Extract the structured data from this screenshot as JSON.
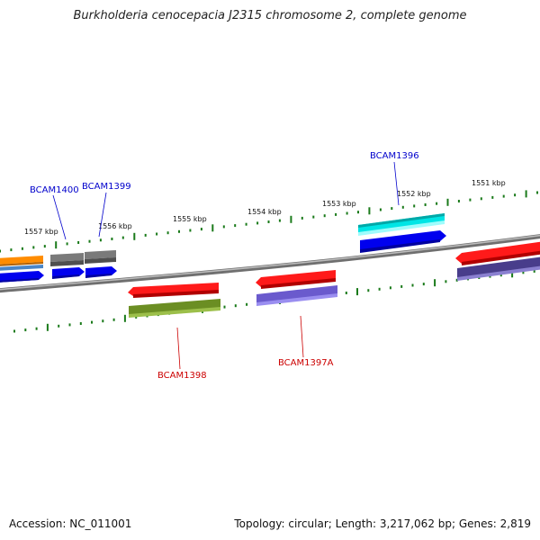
{
  "title": "Burkholderia cenocepacia J2315 chromosome 2, complete genome",
  "footer": {
    "accession": "Accession: NC_011001",
    "topology": "Topology: circular; Length: 3,217,062 bp; Genes: 2,819"
  },
  "kbp_ticks": [
    "1557 kbp",
    "1556 kbp",
    "1555 kbp",
    "1554 kbp",
    "1553 kbp",
    "1552 kbp",
    "1551 kbp"
  ],
  "gene_labels": [
    {
      "id": "BCAM1400",
      "color": "#0000cc",
      "strand": "forward"
    },
    {
      "id": "BCAM1399",
      "color": "#0000cc",
      "strand": "forward"
    },
    {
      "id": "BCAM1396",
      "color": "#0000cc",
      "strand": "forward"
    },
    {
      "id": "BCAM1398",
      "color": "#cc0000",
      "strand": "reverse"
    },
    {
      "id": "BCAM1397A",
      "color": "#cc0000",
      "strand": "reverse"
    }
  ],
  "colors": {
    "backbone": "#808080",
    "tick": "#1a7a1a",
    "forward_label": "#0000cc",
    "reverse_label": "#cc0000",
    "cds_forward": "#0000ee",
    "cds_reverse": "#ff0000",
    "cog_cyan": "#00e5e5",
    "cog_olive": "#6b8e23",
    "cog_slateblue": "#6a5acd",
    "cog_darkslate": "#483d8b",
    "cog_orange": "#ff8c00",
    "cog_gray": "#707070"
  }
}
